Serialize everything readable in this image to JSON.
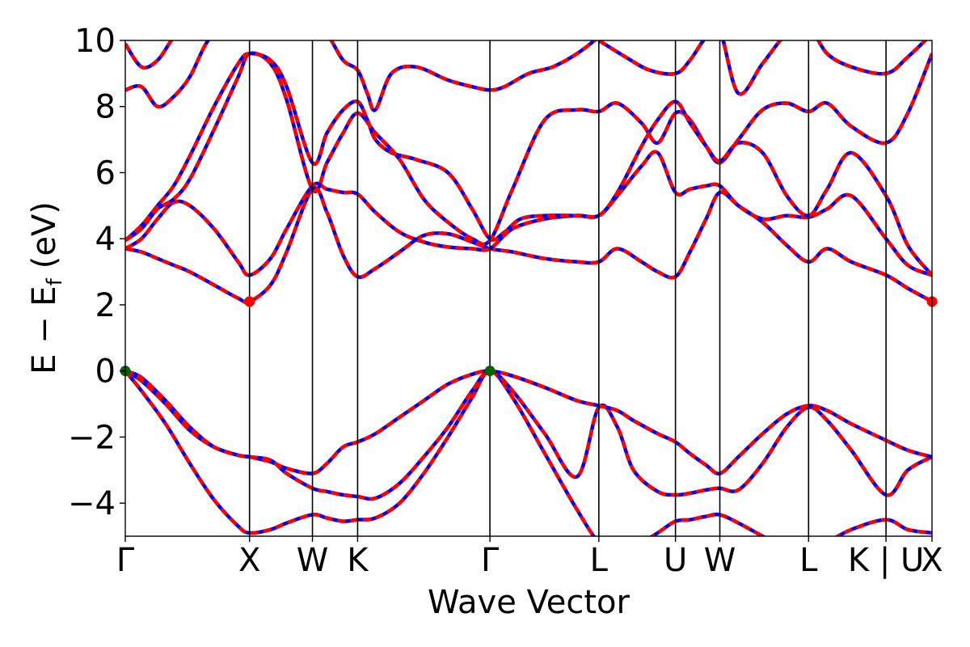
{
  "chart_data": {
    "type": "line",
    "title": "",
    "xlabel": "Wave Vector",
    "ylabel_main": "E − E",
    "ylabel_sub": "f",
    "ylabel_unit": "(eV)",
    "ylim": [
      -5,
      10
    ],
    "grid": false,
    "legend": "none",
    "yticks": [
      {
        "value": -4,
        "label": "−4"
      },
      {
        "value": -2,
        "label": "−2"
      },
      {
        "value": 0,
        "label": "0"
      },
      {
        "value": 2,
        "label": "2"
      },
      {
        "value": 4,
        "label": "4"
      },
      {
        "value": 6,
        "label": "6"
      },
      {
        "value": 8,
        "label": "8"
      },
      {
        "value": 10,
        "label": "10"
      }
    ],
    "xlim": [
      0,
      1000
    ],
    "kpoints": [
      {
        "label": "Γ",
        "x": 0
      },
      {
        "label": "X",
        "x": 154
      },
      {
        "label": "W",
        "x": 232
      },
      {
        "label": "K",
        "x": 288
      },
      {
        "label": "Γ",
        "x": 452
      },
      {
        "label": "L",
        "x": 587
      },
      {
        "label": "U",
        "x": 682
      },
      {
        "label": "W",
        "x": 737
      },
      {
        "label": "L",
        "x": 847
      },
      {
        "label": "K | U",
        "x": 943
      },
      {
        "label": "X",
        "x": 1000
      }
    ],
    "colors": {
      "primary_band": "#ff0000",
      "overlay_band": "#0000ff",
      "vbm_marker": "#006400",
      "cbm_marker": "#ff0000"
    },
    "markers": [
      {
        "kind": "vbm",
        "x": 0,
        "y": 0
      },
      {
        "kind": "vbm",
        "x": 452,
        "y": 0
      },
      {
        "kind": "cbm",
        "x": 154,
        "y": 2.1
      },
      {
        "kind": "cbm",
        "x": 1000,
        "y": 2.1
      }
    ],
    "series": [
      {
        "x": [
          0,
          20,
          50,
          80,
          110,
          140,
          154,
          180,
          200,
          232,
          250,
          270,
          288,
          310,
          340,
          370,
          400,
          430,
          452,
          480,
          520,
          560,
          587,
          610,
          640,
          660,
          682,
          700,
          720,
          737,
          760,
          790,
          820,
          847,
          870,
          900,
          943,
          970,
          1000
        ],
        "y": [
          0,
          -0.6,
          -1.6,
          -2.8,
          -3.9,
          -4.7,
          -4.9,
          -4.8,
          -4.6,
          -4.35,
          -4.45,
          -4.55,
          -4.5,
          -4.45,
          -4.0,
          -3.1,
          -2.0,
          -0.8,
          0,
          -0.8,
          -2.5,
          -4.2,
          -5.2,
          -5.6,
          -5.2,
          -4.9,
          -4.55,
          -4.5,
          -4.4,
          -4.35,
          -4.6,
          -5.0,
          -5.4,
          -5.6,
          -5.2,
          -4.8,
          -4.5,
          -4.8,
          -4.9
        ]
      },
      {
        "x": [
          0,
          20,
          50,
          80,
          110,
          140,
          154,
          180,
          200,
          232,
          250,
          270,
          288,
          310,
          340,
          370,
          400,
          430,
          452,
          480,
          520,
          560,
          587,
          610,
          630,
          660,
          682,
          700,
          720,
          737,
          760,
          790,
          820,
          847,
          870,
          900,
          943,
          970,
          1000
        ],
        "y": [
          0,
          -0.3,
          -1.0,
          -1.8,
          -2.3,
          -2.55,
          -2.6,
          -2.7,
          -3.1,
          -3.55,
          -3.65,
          -3.75,
          -3.8,
          -3.85,
          -3.4,
          -2.6,
          -1.7,
          -0.6,
          0,
          -0.6,
          -1.9,
          -3.2,
          -1.1,
          -1.7,
          -3.0,
          -3.65,
          -3.75,
          -3.7,
          -3.6,
          -3.55,
          -3.6,
          -2.8,
          -1.7,
          -1.1,
          -1.5,
          -2.4,
          -3.75,
          -3.0,
          -2.6
        ]
      },
      {
        "x": [
          0,
          20,
          50,
          80,
          110,
          140,
          154,
          180,
          200,
          232,
          250,
          270,
          288,
          310,
          340,
          370,
          400,
          430,
          452,
          480,
          520,
          560,
          587,
          610,
          630,
          660,
          682,
          700,
          720,
          737,
          760,
          790,
          820,
          847,
          870,
          900,
          943,
          970,
          1000
        ],
        "y": [
          0,
          -0.2,
          -0.9,
          -1.7,
          -2.3,
          -2.55,
          -2.6,
          -2.75,
          -2.95,
          -3.1,
          -2.8,
          -2.3,
          -2.15,
          -1.9,
          -1.4,
          -0.9,
          -0.4,
          -0.1,
          0,
          -0.15,
          -0.5,
          -0.9,
          -1.05,
          -1.2,
          -1.5,
          -1.9,
          -2.15,
          -2.5,
          -2.85,
          -3.1,
          -2.6,
          -1.9,
          -1.3,
          -1.05,
          -1.2,
          -1.6,
          -2.1,
          -2.4,
          -2.6
        ]
      },
      {
        "x": [
          0,
          20,
          40,
          60,
          80,
          110,
          140,
          154,
          180,
          200,
          232,
          250,
          270,
          288,
          310,
          340,
          370,
          400,
          430,
          452,
          480,
          520,
          560,
          587,
          610,
          640,
          660,
          682,
          700,
          720,
          737,
          760,
          790,
          820,
          847,
          870,
          900,
          943,
          970,
          1000
        ],
        "y": [
          3.7,
          3.6,
          3.4,
          3.2,
          3.0,
          2.6,
          2.2,
          2.1,
          2.6,
          3.6,
          5.5,
          4.8,
          3.5,
          2.85,
          3.1,
          3.6,
          4.1,
          4.15,
          3.9,
          3.7,
          3.6,
          3.4,
          3.3,
          3.3,
          3.7,
          3.3,
          3.0,
          2.85,
          3.6,
          4.6,
          5.4,
          5.0,
          4.5,
          3.8,
          3.3,
          3.7,
          3.3,
          2.9,
          2.5,
          2.1
        ]
      },
      {
        "x": [
          0,
          20,
          40,
          60,
          80,
          110,
          140,
          154,
          180,
          200,
          232,
          250,
          270,
          288,
          310,
          340,
          370,
          400,
          430,
          452,
          480,
          520,
          560,
          587,
          610,
          640,
          660,
          682,
          700,
          720,
          737,
          760,
          790,
          820,
          847,
          870,
          900,
          943,
          970,
          1000
        ],
        "y": [
          3.7,
          4.0,
          4.6,
          5.1,
          5.0,
          4.3,
          3.3,
          2.9,
          3.4,
          4.3,
          5.6,
          5.5,
          5.4,
          5.35,
          4.8,
          4.2,
          3.9,
          3.75,
          3.7,
          3.7,
          4.3,
          4.6,
          4.7,
          4.7,
          5.3,
          6.2,
          6.6,
          5.4,
          5.5,
          5.6,
          5.6,
          5.0,
          4.6,
          4.7,
          4.65,
          4.9,
          5.3,
          4.0,
          3.2,
          2.9
        ]
      },
      {
        "x": [
          0,
          20,
          40,
          60,
          80,
          110,
          140,
          154,
          180,
          200,
          232,
          250,
          270,
          288,
          310,
          340,
          370,
          400,
          430,
          452,
          480,
          520,
          560,
          587,
          610,
          640,
          660,
          682,
          700,
          720,
          737,
          760,
          790,
          820,
          847,
          870,
          900,
          943,
          970,
          1000
        ],
        "y": [
          3.95,
          4.3,
          4.9,
          5.2,
          5.8,
          7.3,
          8.9,
          9.6,
          9.3,
          8.2,
          5.5,
          6.3,
          7.2,
          7.8,
          7.2,
          6.4,
          5.2,
          4.5,
          4.0,
          3.95,
          5.5,
          7.6,
          7.9,
          7.85,
          8.1,
          7.5,
          6.9,
          7.8,
          7.6,
          6.8,
          6.3,
          7.0,
          7.9,
          8.1,
          7.85,
          8.1,
          7.4,
          6.9,
          7.8,
          9.6
        ]
      },
      {
        "x": [
          0,
          20,
          40,
          60,
          80,
          110,
          140,
          154,
          180,
          200,
          232,
          250,
          270,
          288,
          300,
          310,
          330,
          360,
          400,
          430,
          452,
          470,
          490,
          520,
          560,
          587,
          610,
          640,
          660,
          682,
          700,
          720,
          737,
          760,
          790,
          820,
          847,
          870,
          900,
          943,
          970,
          1000
        ],
        "y": [
          3.95,
          4.4,
          5.0,
          5.6,
          6.5,
          8.0,
          9.3,
          9.6,
          9.4,
          8.6,
          6.3,
          7.2,
          7.9,
          8.15,
          7.6,
          7.0,
          6.6,
          6.4,
          6.0,
          4.9,
          4.0,
          4.2,
          4.6,
          4.7,
          4.7,
          4.7,
          5.4,
          6.8,
          7.6,
          8.15,
          7.5,
          6.8,
          6.35,
          6.9,
          6.6,
          5.3,
          4.7,
          5.5,
          6.6,
          5.3,
          3.8,
          2.9
        ]
      },
      {
        "x": [
          0,
          20,
          40,
          60,
          80,
          100,
          120,
          154,
          180,
          200,
          232,
          250,
          270,
          288,
          300,
          310,
          330,
          360,
          400,
          430,
          452,
          470,
          500,
          530,
          560,
          587
        ],
        "y": [
          8.5,
          8.6,
          8.0,
          8.3,
          8.9,
          9.9,
          10.5,
          11.0,
          11.0,
          10.8,
          10.5,
          10.2,
          9.4,
          9.1,
          8.4,
          7.9,
          9.0,
          9.2,
          8.8,
          8.6,
          8.5,
          8.6,
          9.0,
          9.2,
          9.6,
          10.1
        ]
      },
      {
        "x": [
          0,
          20,
          40,
          60,
          80,
          110
        ],
        "y": [
          9.9,
          9.2,
          9.4,
          10.1,
          10.6,
          11.0
        ]
      },
      {
        "x": [
          587,
          620,
          650,
          682,
          700,
          720,
          737,
          760,
          790,
          820,
          847,
          870,
          900,
          943,
          970,
          1000
        ],
        "y": [
          10.0,
          9.5,
          9.1,
          9.0,
          9.4,
          10.1,
          10.3,
          8.4,
          9.3,
          10.2,
          10.4,
          9.6,
          9.2,
          9.0,
          9.5,
          10.2
        ]
      }
    ]
  }
}
